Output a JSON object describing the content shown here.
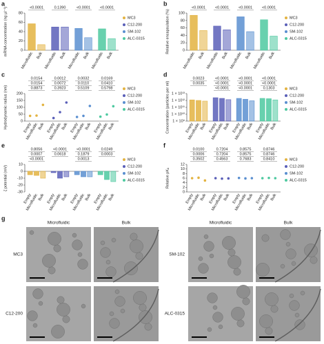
{
  "chart_data": [
    {
      "type": "bar",
      "panel": "a",
      "y_label": "mRNA concentration (ng µl⁻¹)",
      "categories": [
        "Microfluidic",
        "Bulk"
      ],
      "series": [
        {
          "name": "MC3",
          "color": "#e3b341",
          "values": [
            57,
            12
          ],
          "p_values": [
            "<0.0001"
          ]
        },
        {
          "name": "C12-200",
          "color": "#5a5fb8",
          "values": [
            50,
            50
          ],
          "p_values": [
            "0.1390"
          ]
        },
        {
          "name": "SM-102",
          "color": "#5a8fd0",
          "values": [
            47,
            27
          ],
          "p_values": [
            "<0.0001"
          ]
        },
        {
          "name": "ALC-0315",
          "color": "#4ec9a0",
          "values": [
            46,
            25
          ],
          "p_values": [
            "<0.0001"
          ]
        }
      ],
      "ylim": [
        0,
        80
      ],
      "yticks": [
        0,
        20,
        40,
        60,
        80
      ]
    },
    {
      "type": "bar",
      "panel": "b",
      "y_label": "Relative encapsulation (%)",
      "categories": [
        "Microfluidic",
        "Bulk"
      ],
      "series": [
        {
          "name": "MC3",
          "color": "#e3b341",
          "values": [
            94,
            53
          ],
          "p_values": [
            "<0.0001"
          ]
        },
        {
          "name": "C12-200",
          "color": "#5a5fb8",
          "values": [
            65,
            55
          ],
          "p_values": [
            "<0.0001"
          ]
        },
        {
          "name": "SM-102",
          "color": "#5a8fd0",
          "values": [
            90,
            50
          ],
          "p_values": [
            "<0.0001"
          ]
        },
        {
          "name": "ALC-0315",
          "color": "#4ec9a0",
          "values": [
            82,
            38
          ],
          "p_values": [
            "<0.0001"
          ]
        }
      ],
      "ylim": [
        0,
        100
      ],
      "yticks": [
        0,
        20,
        40,
        60,
        80,
        100
      ]
    },
    {
      "type": "dot",
      "panel": "c",
      "y_label": "Hydrodynamic radius (nm)",
      "categories": [
        "Empty",
        "Microfluidic",
        "Bulk"
      ],
      "series": [
        {
          "name": "MC3",
          "color": "#e3b341",
          "values": [
            38,
            40,
            118
          ],
          "p_values": [
            "0.0154",
            "0.0154",
            "0.8873"
          ]
        },
        {
          "name": "C12-200",
          "color": "#5a5fb8",
          "values": [
            22,
            65,
            135
          ],
          "p_values": [
            "0.0012",
            "0.0072",
            "0.3923"
          ]
        },
        {
          "name": "SM-102",
          "color": "#5a8fd0",
          "values": [
            30,
            38,
            110
          ],
          "p_values": [
            "0.0032",
            "0.0110",
            "0.5109"
          ]
        },
        {
          "name": "ALC-0315",
          "color": "#4ec9a0",
          "values": [
            32,
            48,
            108
          ],
          "p_values": [
            "0.0169",
            "0.0410",
            "0.5798"
          ]
        }
      ],
      "ylim": [
        0,
        200
      ],
      "yticks": [
        0,
        50,
        100,
        150,
        200
      ]
    },
    {
      "type": "bar",
      "panel": "d",
      "y_label": "Concentration (particles per ml)",
      "log_scale": true,
      "categories": [
        "Empty",
        "Microfluidic",
        "Bulk"
      ],
      "series": [
        {
          "name": "MC3",
          "color": "#e3b341",
          "values": [
            1200000000000,
            1000000000000,
            800000000000
          ],
          "p_values": [
            "0.0023",
            "0.0035"
          ]
        },
        {
          "name": "C12-200",
          "color": "#5a5fb8",
          "values": [
            2500000000000,
            2000000000000,
            1300000000000
          ],
          "p_values": [
            "<0.0001",
            "<0.0001",
            "<0.0001"
          ]
        },
        {
          "name": "SM-102",
          "color": "#5a8fd0",
          "values": [
            2000000000000,
            1500000000000,
            900000000000
          ],
          "p_values": [
            "<0.0001",
            "<0.0001",
            "<0.0001"
          ]
        },
        {
          "name": "ALC-0315",
          "color": "#4ec9a0",
          "values": [
            2000000000000,
            1800000000000,
            1200000000000
          ],
          "p_values": [
            "<0.0001",
            "<0.0001",
            "0.1303"
          ]
        }
      ],
      "ylim": [
        1000000000,
        10000000000000
      ],
      "yticks": [
        {
          "value": 1000000000,
          "label": "1 × 10⁹"
        },
        {
          "value": 10000000000,
          "label": "1 × 10¹⁰"
        },
        {
          "value": 100000000000,
          "label": "1 × 10¹¹"
        },
        {
          "value": 1000000000000,
          "label": "1 × 10¹²"
        },
        {
          "value": 10000000000000,
          "label": "1 × 10¹³"
        }
      ]
    },
    {
      "type": "bar",
      "panel": "e",
      "y_label": "ζ potential (mV)",
      "categories": [
        "Empty",
        "Microfluidic",
        "Bulk"
      ],
      "series": [
        {
          "name": "MC3",
          "color": "#e3b341",
          "values": [
            -5,
            -6,
            -10
          ],
          "p_values": [
            "0.8056",
            "0.0007",
            "<0.0001"
          ]
        },
        {
          "name": "C12-200",
          "color": "#5a5fb8",
          "values": [
            -2,
            -10,
            -8
          ],
          "p_values": [
            "<0.0001",
            "0.0618"
          ]
        },
        {
          "name": "SM-102",
          "color": "#5a8fd0",
          "values": [
            -5,
            -8,
            -8
          ],
          "p_values": [
            "<0.0001",
            "0.1879",
            "0.0013"
          ]
        },
        {
          "name": "ALC-0315",
          "color": "#4ec9a0",
          "values": [
            -5,
            -12,
            -15
          ],
          "p_values": [
            "0.0249",
            "0.0003"
          ]
        }
      ],
      "ylim": [
        -30,
        10
      ],
      "yticks": [
        10,
        0,
        -10,
        -20,
        -30
      ]
    },
    {
      "type": "dot",
      "panel": "f",
      "y_label": "Relative pKₐ",
      "categories": [
        "Empty",
        "Microfluidic",
        "Bulk"
      ],
      "series": [
        {
          "name": "MC3",
          "color": "#e3b341",
          "values": [
            6.0,
            6.2,
            5.0
          ],
          "p_values": [
            "0.0100",
            "0.0006",
            "0.3502"
          ]
        },
        {
          "name": "C12-200",
          "color": "#5a5fb8",
          "values": [
            6.0,
            5.8,
            5.9
          ],
          "p_values": [
            "0.7204",
            "0.7204",
            "0.4563"
          ]
        },
        {
          "name": "SM-102",
          "color": "#5a8fd0",
          "values": [
            6.1,
            5.9,
            6.0
          ],
          "p_values": [
            "0.8575",
            "0.8575",
            "0.7683"
          ]
        },
        {
          "name": "ALC-0315",
          "color": "#4ec9a0",
          "values": [
            6.0,
            6.1,
            6.0
          ],
          "p_values": [
            "0.8746",
            "0.8746",
            "0.8410"
          ]
        }
      ],
      "ylim": [
        0,
        12
      ],
      "yticks": [
        0,
        2,
        4,
        6,
        8,
        10,
        12
      ]
    }
  ],
  "micrographs": {
    "panel": "g",
    "column_labels": [
      "Microfluidic",
      "Bulk"
    ],
    "rows": [
      {
        "label": "MC3"
      },
      {
        "label": "C12-200"
      },
      {
        "label": "SM-102"
      },
      {
        "label": "ALC-0315"
      }
    ]
  }
}
